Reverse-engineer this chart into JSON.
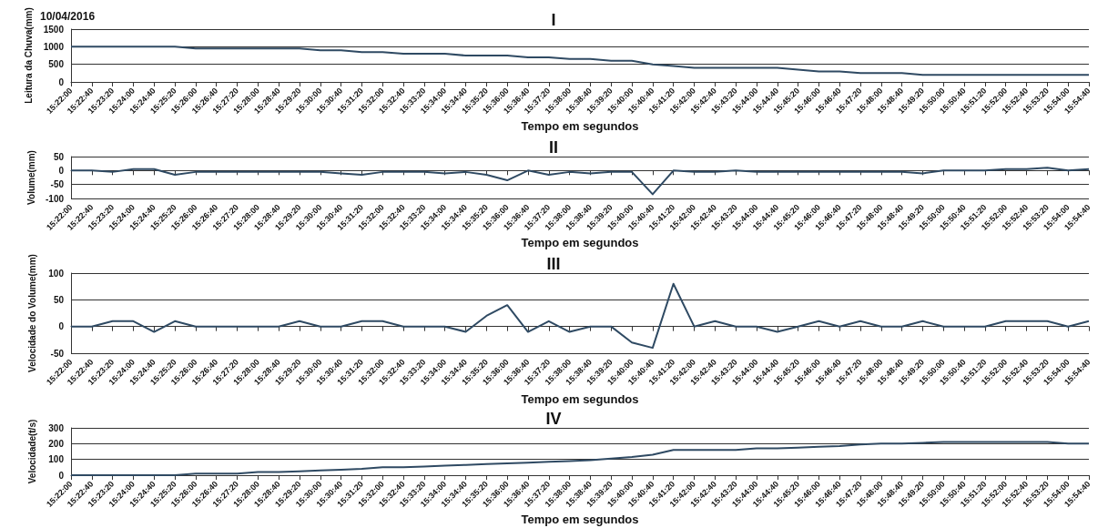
{
  "chart_data": [
    {
      "type": "line",
      "title": "I",
      "xlabel": "Tempo em segundos",
      "ylabel": "Leitura da Chuva(mm)",
      "annotations": [
        "10/04/2016"
      ],
      "grid": "y",
      "marker": "none",
      "line_style": "solid",
      "categories": [
        "15:22:00",
        "15:22:40",
        "15:23:20",
        "15:24:00",
        "15:24:40",
        "15:25:20",
        "15:26:00",
        "15:26:40",
        "15:27:20",
        "15:28:00",
        "15:28:40",
        "15:29:20",
        "15:30:00",
        "15:30:40",
        "15:31:20",
        "15:32:00",
        "15:32:40",
        "15:33:20",
        "15:34:00",
        "15:34:40",
        "15:35:20",
        "15:36:00",
        "15:36:40",
        "15:37:20",
        "15:38:00",
        "15:38:40",
        "15:39:20",
        "15:40:00",
        "15:40:40",
        "15:41:20",
        "15:42:00",
        "15:42:40",
        "15:43:20",
        "15:44:00",
        "15:44:40",
        "15:45:20",
        "15:46:00",
        "15:46:40",
        "15:47:20",
        "15:48:00",
        "15:48:40",
        "15:49:20",
        "15:50:00",
        "15:50:40",
        "15:51:20",
        "15:52:00",
        "15:52:40",
        "15:53:20",
        "15:54:00",
        "15:54:40"
      ],
      "series": [
        {
          "color": "#2f4a63",
          "values": [
            1000,
            1000,
            1000,
            1000,
            1000,
            1000,
            950,
            950,
            950,
            950,
            950,
            950,
            900,
            900,
            850,
            850,
            800,
            800,
            800,
            750,
            750,
            750,
            700,
            700,
            650,
            650,
            600,
            600,
            500,
            450,
            400,
            400,
            400,
            400,
            400,
            350,
            300,
            300,
            250,
            250,
            250,
            200,
            200,
            200,
            200,
            200,
            200,
            200,
            200,
            200
          ]
        }
      ],
      "ylim": [
        0,
        1500
      ],
      "yticks": [
        0,
        500,
        1000,
        1500
      ]
    },
    {
      "type": "line",
      "title": "II",
      "xlabel": "Tempo em segundos",
      "ylabel": "Volume(mm)",
      "grid": "y",
      "marker": "none",
      "line_style": "solid",
      "categories": [
        "15:22:00",
        "15:22:40",
        "15:23:20",
        "15:24:00",
        "15:24:40",
        "15:25:20",
        "15:26:00",
        "15:26:40",
        "15:27:20",
        "15:28:00",
        "15:28:40",
        "15:29:20",
        "15:30:00",
        "15:30:40",
        "15:31:20",
        "15:32:00",
        "15:32:40",
        "15:33:20",
        "15:34:00",
        "15:34:40",
        "15:35:20",
        "15:36:00",
        "15:36:40",
        "15:37:20",
        "15:38:00",
        "15:38:40",
        "15:39:20",
        "15:40:00",
        "15:40:40",
        "15:41:20",
        "15:42:00",
        "15:42:40",
        "15:43:20",
        "15:44:00",
        "15:44:40",
        "15:45:20",
        "15:46:00",
        "15:46:40",
        "15:47:20",
        "15:48:00",
        "15:48:40",
        "15:49:20",
        "15:50:00",
        "15:50:40",
        "15:51:20",
        "15:52:00",
        "15:52:40",
        "15:53:20",
        "15:54:00",
        "15:54:40"
      ],
      "series": [
        {
          "color": "#2f4a63",
          "values": [
            0,
            0,
            -5,
            5,
            5,
            -15,
            -5,
            -5,
            -5,
            -5,
            -5,
            -5,
            -5,
            -10,
            -15,
            -5,
            -5,
            -5,
            -10,
            -5,
            -15,
            -35,
            0,
            -15,
            -5,
            -10,
            -5,
            -5,
            -85,
            0,
            -5,
            -5,
            0,
            -5,
            -5,
            -5,
            -5,
            -5,
            -5,
            -5,
            -5,
            -10,
            0,
            0,
            0,
            5,
            5,
            10,
            0,
            5
          ]
        }
      ],
      "ylim": [
        -100,
        50
      ],
      "yticks": [
        -100,
        -50,
        0,
        50
      ]
    },
    {
      "type": "line",
      "title": "III",
      "xlabel": "Tempo em segundos",
      "ylabel": "Velocidade do Volume(mm)",
      "grid": "y",
      "marker": "none",
      "line_style": "solid",
      "categories": [
        "15:22:00",
        "15:22:40",
        "15:23:20",
        "15:24:00",
        "15:24:40",
        "15:25:20",
        "15:26:00",
        "15:26:40",
        "15:27:20",
        "15:28:00",
        "15:28:40",
        "15:29:20",
        "15:30:00",
        "15:30:40",
        "15:31:20",
        "15:32:00",
        "15:32:40",
        "15:33:20",
        "15:34:00",
        "15:34:40",
        "15:35:20",
        "15:36:00",
        "15:36:40",
        "15:37:20",
        "15:38:00",
        "15:38:40",
        "15:39:20",
        "15:40:00",
        "15:40:40",
        "15:41:20",
        "15:42:00",
        "15:42:40",
        "15:43:20",
        "15:44:00",
        "15:44:40",
        "15:45:20",
        "15:46:00",
        "15:46:40",
        "15:47:20",
        "15:48:00",
        "15:48:40",
        "15:49:20",
        "15:50:00",
        "15:50:40",
        "15:51:20",
        "15:52:00",
        "15:52:40",
        "15:53:20",
        "15:54:00",
        "15:54:40"
      ],
      "series": [
        {
          "color": "#2f4a63",
          "values": [
            0,
            0,
            10,
            10,
            -10,
            10,
            0,
            0,
            0,
            0,
            0,
            10,
            0,
            0,
            10,
            10,
            0,
            0,
            0,
            -10,
            20,
            40,
            -10,
            10,
            -10,
            0,
            0,
            -30,
            -40,
            80,
            0,
            10,
            0,
            0,
            -10,
            0,
            10,
            0,
            10,
            0,
            0,
            10,
            0,
            0,
            0,
            10,
            10,
            10,
            0,
            10
          ]
        }
      ],
      "ylim": [
        -50,
        100
      ],
      "yticks": [
        -50,
        0,
        50,
        100
      ]
    },
    {
      "type": "line",
      "title": "IV",
      "xlabel": "Tempo em segundos",
      "ylabel": "Velocidade(t/s)",
      "grid": "y",
      "marker": "none",
      "line_style": "solid",
      "categories": [
        "15:22:00",
        "15:22:40",
        "15:23:20",
        "15:24:00",
        "15:24:40",
        "15:25:20",
        "15:26:00",
        "15:26:40",
        "15:27:20",
        "15:28:00",
        "15:28:40",
        "15:29:20",
        "15:30:00",
        "15:30:40",
        "15:31:20",
        "15:32:00",
        "15:32:40",
        "15:33:20",
        "15:34:00",
        "15:34:40",
        "15:35:20",
        "15:36:00",
        "15:36:40",
        "15:37:20",
        "15:38:00",
        "15:38:40",
        "15:39:20",
        "15:40:00",
        "15:40:40",
        "15:41:20",
        "15:42:00",
        "15:42:40",
        "15:43:20",
        "15:44:00",
        "15:44:40",
        "15:45:20",
        "15:46:00",
        "15:46:40",
        "15:47:20",
        "15:48:00",
        "15:48:40",
        "15:49:20",
        "15:50:00",
        "15:50:40",
        "15:51:20",
        "15:52:00",
        "15:52:40",
        "15:53:20",
        "15:54:00",
        "15:54:40"
      ],
      "series": [
        {
          "color": "#2f4a63",
          "values": [
            0,
            0,
            0,
            0,
            0,
            0,
            10,
            10,
            10,
            20,
            20,
            25,
            30,
            35,
            40,
            50,
            50,
            55,
            60,
            65,
            70,
            75,
            80,
            85,
            90,
            95,
            105,
            115,
            130,
            160,
            160,
            160,
            160,
            170,
            170,
            175,
            180,
            185,
            195,
            200,
            200,
            205,
            210,
            210,
            210,
            210,
            210,
            210,
            200,
            200
          ]
        }
      ],
      "ylim": [
        0,
        300
      ],
      "yticks": [
        0,
        100,
        200,
        300
      ]
    }
  ]
}
